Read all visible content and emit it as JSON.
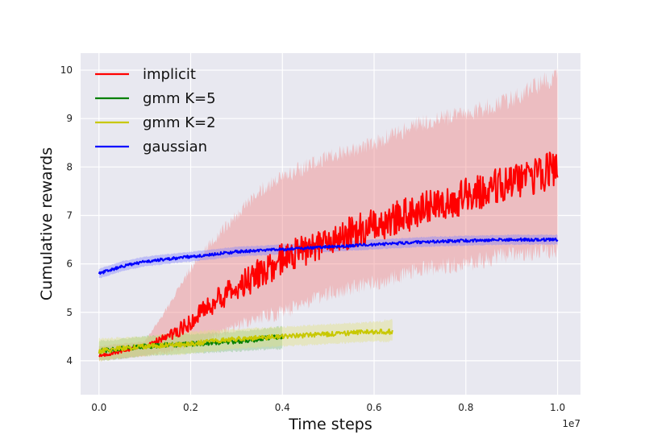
{
  "chart_data": {
    "type": "line",
    "xlabel": "Time steps",
    "ylabel": "Cumulative rewards",
    "x_offset_text": "1e7",
    "xlim": [
      -0.04,
      1.05
    ],
    "ylim": [
      3.3,
      10.35
    ],
    "xticks": [
      0.0,
      0.2,
      0.4,
      0.6,
      0.8,
      1.0
    ],
    "xtick_labels": [
      "0.0",
      "0.2",
      "0.4",
      "0.6",
      "0.8",
      "1.0"
    ],
    "yticks": [
      4,
      5,
      6,
      7,
      8,
      9,
      10
    ],
    "ytick_labels": [
      "4",
      "5",
      "6",
      "7",
      "8",
      "9",
      "10"
    ],
    "grid": true,
    "legend_position": "top-left",
    "background_color": "#E8E8F0",
    "series": [
      {
        "name": "implicit",
        "color": "#FF0000",
        "band_color": "#F08080",
        "x": [
          0.0,
          0.1,
          0.15,
          0.2,
          0.25,
          0.3,
          0.35,
          0.4,
          0.45,
          0.5,
          0.6,
          0.7,
          0.8,
          0.9,
          1.0
        ],
        "y": [
          4.1,
          4.3,
          4.5,
          4.8,
          5.2,
          5.5,
          5.8,
          6.1,
          6.3,
          6.5,
          6.8,
          7.1,
          7.4,
          7.7,
          8.0
        ],
        "lower": [
          4.0,
          4.1,
          4.2,
          4.3,
          4.5,
          4.7,
          4.9,
          5.0,
          5.2,
          5.4,
          5.6,
          5.9,
          6.0,
          6.2,
          6.3
        ],
        "upper": [
          4.3,
          4.4,
          5.1,
          5.9,
          6.5,
          7.0,
          7.5,
          7.8,
          8.0,
          8.2,
          8.5,
          8.9,
          9.1,
          9.4,
          9.9
        ]
      },
      {
        "name": "gmm K=5",
        "color": "#008000",
        "band_color": "#80C080",
        "x": [
          0.0,
          0.1,
          0.2,
          0.3,
          0.4
        ],
        "y": [
          4.2,
          4.3,
          4.35,
          4.4,
          4.5
        ],
        "lower": [
          4.0,
          4.1,
          4.15,
          4.2,
          4.25
        ],
        "upper": [
          4.4,
          4.5,
          4.55,
          4.6,
          4.7
        ]
      },
      {
        "name": "gmm K=2",
        "color": "#C8C800",
        "band_color": "#E0E080",
        "x": [
          0.0,
          0.1,
          0.2,
          0.3,
          0.4,
          0.5,
          0.6,
          0.64
        ],
        "y": [
          4.2,
          4.3,
          4.35,
          4.45,
          4.5,
          4.55,
          4.6,
          4.6
        ],
        "lower": [
          4.0,
          4.1,
          4.15,
          4.25,
          4.3,
          4.35,
          4.4,
          4.4
        ],
        "upper": [
          4.45,
          4.5,
          4.6,
          4.65,
          4.7,
          4.75,
          4.8,
          4.85
        ]
      },
      {
        "name": "gaussian",
        "color": "#0000FF",
        "band_color": "#8080FF",
        "x": [
          0.0,
          0.05,
          0.1,
          0.15,
          0.2,
          0.3,
          0.4,
          0.5,
          0.6,
          0.7,
          0.8,
          0.9,
          1.0
        ],
        "y": [
          5.8,
          5.95,
          6.05,
          6.1,
          6.15,
          6.25,
          6.3,
          6.35,
          6.4,
          6.45,
          6.48,
          6.5,
          6.5
        ],
        "lower": [
          5.7,
          5.85,
          5.95,
          6.0,
          6.05,
          6.15,
          6.2,
          6.25,
          6.3,
          6.35,
          6.38,
          6.4,
          6.4
        ],
        "upper": [
          5.9,
          6.05,
          6.15,
          6.2,
          6.25,
          6.35,
          6.4,
          6.45,
          6.5,
          6.55,
          6.58,
          6.6,
          6.6
        ]
      }
    ]
  }
}
